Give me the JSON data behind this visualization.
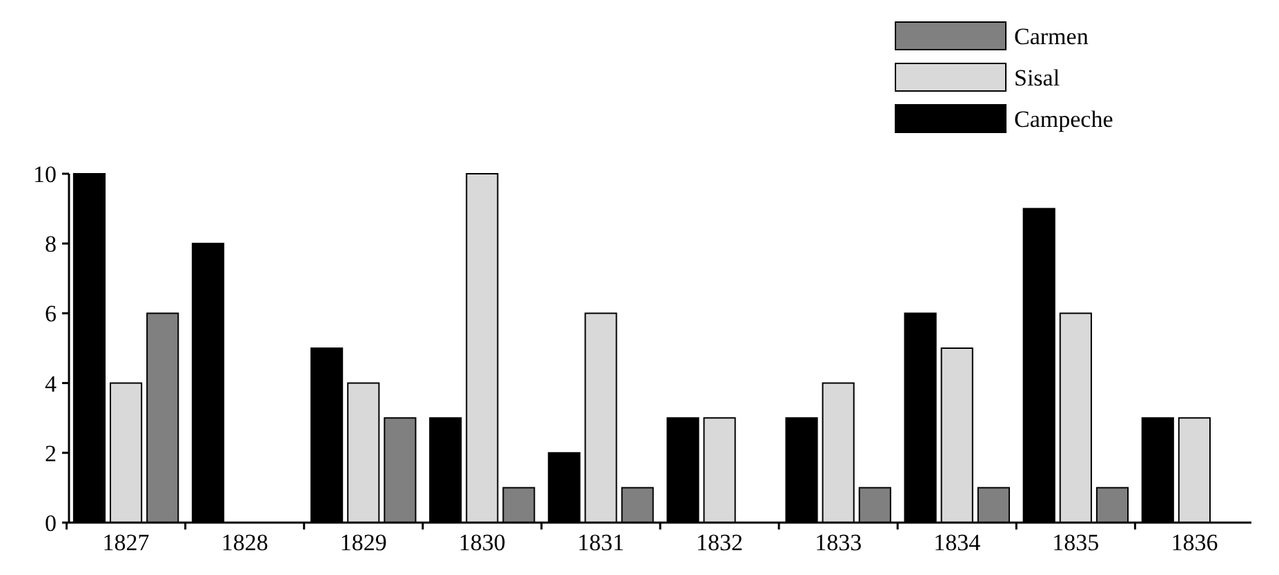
{
  "chart_data": {
    "type": "bar",
    "categories": [
      "1827",
      "1828",
      "1829",
      "1830",
      "1831",
      "1832",
      "1833",
      "1834",
      "1835",
      "1836"
    ],
    "series": [
      {
        "name": "Campeche",
        "color": "#000000",
        "values": [
          10,
          8,
          5,
          3,
          2,
          3,
          3,
          6,
          9,
          3
        ]
      },
      {
        "name": "Sisal",
        "color": "#d9d9d9",
        "values": [
          4,
          0,
          4,
          10,
          6,
          3,
          4,
          5,
          6,
          3
        ]
      },
      {
        "name": "Carmen",
        "color": "#808080",
        "values": [
          6,
          0,
          3,
          1,
          1,
          0,
          1,
          1,
          1,
          0
        ]
      }
    ],
    "ylim": [
      0,
      10
    ],
    "yticks": [
      0,
      2,
      4,
      6,
      8,
      10
    ],
    "grid": false,
    "legend": "top right"
  }
}
